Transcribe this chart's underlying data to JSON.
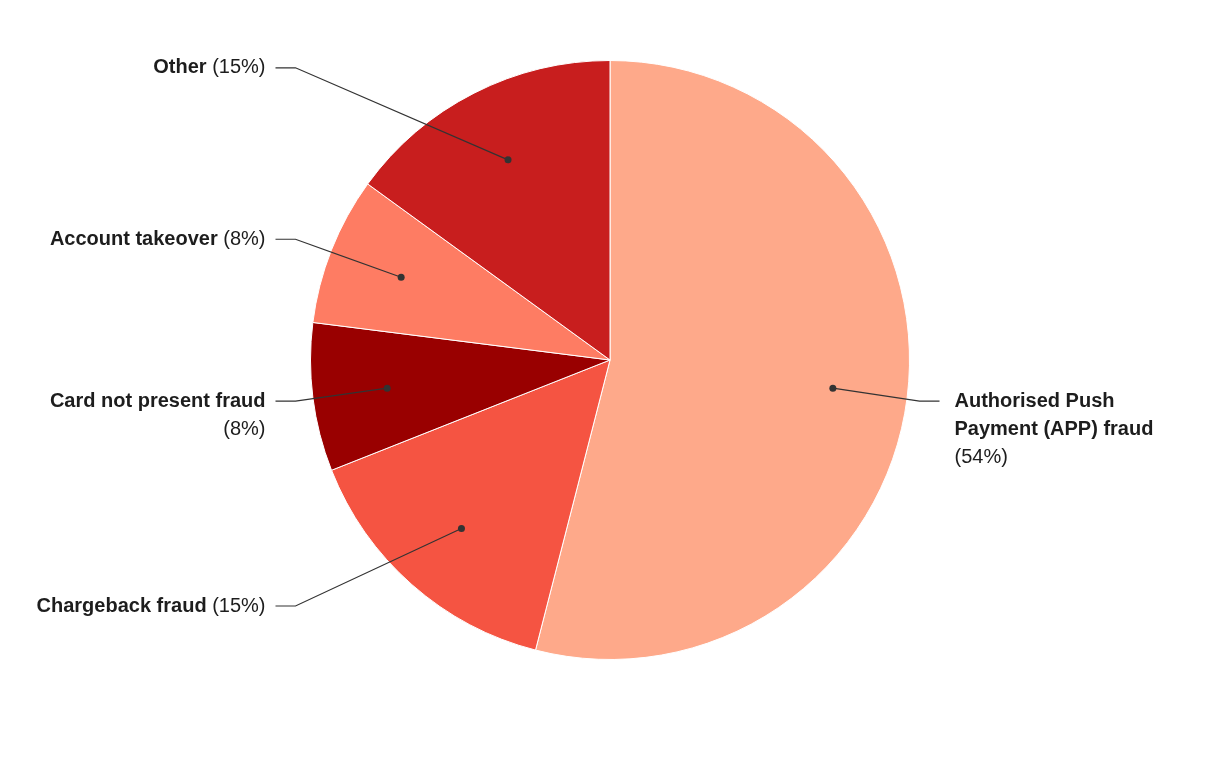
{
  "chart_data": {
    "type": "pie",
    "categories": [
      "Authorised Push Payment (APP) fraud",
      "Chargeback fraud",
      "Card not present fraud",
      "Account takeover",
      "Other"
    ],
    "values": [
      54,
      15,
      8,
      8,
      15
    ],
    "value_labels": [
      "(54%)",
      "(15%)",
      "(8%)",
      "(8%)",
      "(15%)"
    ],
    "colors": [
      "#fea98a",
      "#f55442",
      "#990000",
      "#fe7c63",
      "#c81e1e"
    ],
    "legend": false
  }
}
